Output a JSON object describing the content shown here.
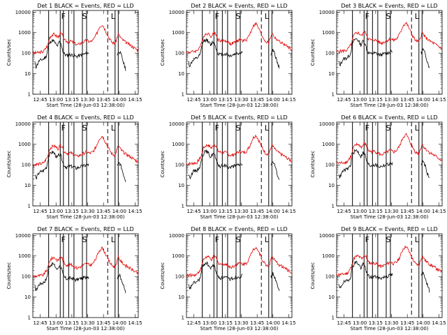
{
  "chart_data": {
    "type": "line",
    "layout": "3x3 grid",
    "legend_text": "BLACK = Events, RED = LLD",
    "xlabel": "Start Time (28-Jun-03 12:38:00)",
    "ylabel": "Counts/sec",
    "x_ticks": [
      "12:45",
      "13:00",
      "13:15",
      "13:30",
      "13:45",
      "14:00",
      "14:15"
    ],
    "x_tick_minutes": [
      7,
      22,
      37,
      52,
      67,
      82,
      97
    ],
    "xlim_minutes": [
      0,
      100
    ],
    "y_scale": "log",
    "y_ticks": [
      "1",
      "10",
      "100",
      "1000",
      "10000"
    ],
    "ylim": [
      1,
      12000
    ],
    "grid": false,
    "series_colors": {
      "events": "#000000",
      "lld": "#e00000"
    },
    "flags": [
      {
        "label": "F",
        "minute": 29
      },
      {
        "label": "S",
        "minute": 49
      },
      {
        "label": "L",
        "minute": 76
      }
    ],
    "dashed_line_minute": 71,
    "solid_vertical_minutes": [
      15,
      26,
      29,
      34,
      39,
      47,
      51,
      78,
      81
    ],
    "panels": [
      {
        "title": "Det 1",
        "id": 1
      },
      {
        "title": "Det 2",
        "id": 2
      },
      {
        "title": "Det 3",
        "id": 3
      },
      {
        "title": "Det 4",
        "id": 4
      },
      {
        "title": "Det 5",
        "id": 5
      },
      {
        "title": "Det 6",
        "id": 6
      },
      {
        "title": "Det 7",
        "id": 7
      },
      {
        "title": "Det 8",
        "id": 8
      },
      {
        "title": "Det 9",
        "id": 9
      }
    ],
    "lld_profile": [
      [
        0,
        120
      ],
      [
        5,
        125
      ],
      [
        10,
        140
      ],
      [
        14,
        280
      ],
      [
        16,
        700
      ],
      [
        18,
        900
      ],
      [
        20,
        1000
      ],
      [
        22,
        850
      ],
      [
        24,
        700
      ],
      [
        26,
        1100
      ],
      [
        28,
        900
      ],
      [
        30,
        500
      ],
      [
        33,
        420
      ],
      [
        36,
        450
      ],
      [
        39,
        380
      ],
      [
        42,
        300
      ],
      [
        45,
        350
      ],
      [
        48,
        420
      ],
      [
        51,
        500
      ],
      [
        54,
        420
      ],
      [
        57,
        500
      ],
      [
        60,
        900
      ],
      [
        63,
        2200
      ],
      [
        66,
        3000
      ],
      [
        69,
        1500
      ],
      [
        72,
        700
      ],
      [
        75,
        400
      ],
      [
        78,
        350
      ],
      [
        81,
        1000
      ],
      [
        84,
        600
      ],
      [
        88,
        400
      ],
      [
        92,
        300
      ],
      [
        96,
        220
      ],
      [
        100,
        160
      ]
    ],
    "events_profile": [
      [
        2,
        40
      ],
      [
        3,
        25
      ],
      [
        6,
        50
      ],
      [
        10,
        60
      ],
      [
        13,
        90
      ],
      [
        15,
        300
      ],
      [
        17,
        450
      ],
      [
        19,
        500
      ],
      [
        21,
        380
      ],
      [
        23,
        250
      ],
      [
        25,
        400
      ],
      [
        27,
        300
      ],
      [
        29,
        120
      ],
      [
        32,
        90
      ],
      [
        35,
        100
      ],
      [
        38,
        95
      ],
      [
        41,
        80
      ],
      [
        44,
        90
      ],
      [
        47,
        100
      ],
      [
        50,
        110
      ],
      [
        53,
        120
      ],
      [
        null,
        null
      ],
      [
        80,
        100
      ],
      [
        82,
        150
      ],
      [
        84,
        90
      ],
      [
        86,
        40
      ],
      [
        88,
        20
      ]
    ]
  }
}
